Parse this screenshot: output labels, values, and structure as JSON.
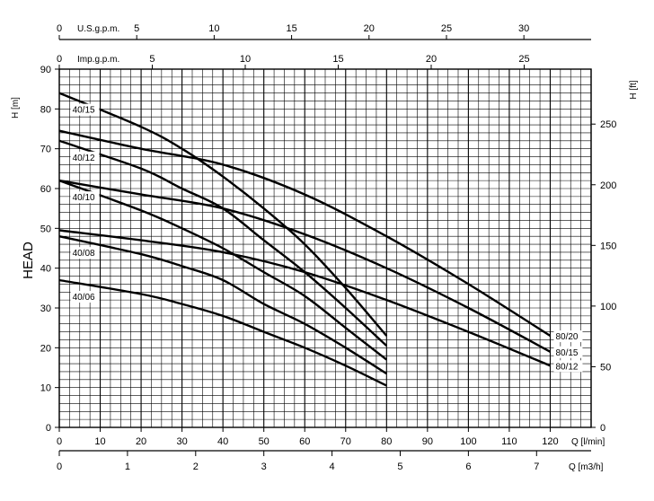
{
  "chart_data": {
    "type": "line",
    "ylabel": "HEAD",
    "left_axis": {
      "unit": "H [m]",
      "range": [
        0,
        90
      ],
      "ticks": [
        0,
        10,
        20,
        30,
        40,
        50,
        60,
        70,
        80,
        90
      ]
    },
    "right_axis": {
      "unit": "H [ft]",
      "range": [
        0,
        295.3
      ],
      "ticks": [
        0,
        50,
        100,
        150,
        200,
        250
      ]
    },
    "bottom_axis_lmin": {
      "unit": "Q [l/min]",
      "range": [
        0,
        130
      ],
      "ticks": [
        0,
        10,
        20,
        30,
        40,
        50,
        60,
        70,
        80,
        90,
        100,
        110,
        120
      ]
    },
    "bottom_axis_m3h": {
      "unit": "Q [m3/h]",
      "range": [
        0,
        7.8
      ],
      "ticks": [
        0,
        1,
        2,
        3,
        4,
        5,
        6,
        7
      ]
    },
    "top_axis_usgpm": {
      "unit": "U.S.g.p.m.",
      "range": [
        0,
        34.34
      ],
      "ticks": [
        0,
        5,
        10,
        15,
        20,
        25,
        30
      ]
    },
    "top_axis_impgpm": {
      "unit": "Imp.g.p.m.",
      "range": [
        0,
        28.6
      ],
      "ticks": [
        0,
        5,
        10,
        15,
        20,
        25
      ]
    },
    "grid": true,
    "series": [
      {
        "name": "40/15",
        "x": [
          0,
          20,
          30,
          40,
          50,
          60,
          70,
          80
        ],
        "y": [
          84,
          75.5,
          70,
          63,
          55,
          46,
          35,
          23
        ]
      },
      {
        "name": "40/12",
        "x": [
          0,
          20,
          30,
          40,
          50,
          60,
          70,
          80
        ],
        "y": [
          72,
          65,
          60,
          55,
          47,
          39,
          30,
          20.5
        ]
      },
      {
        "name": "40/10",
        "x": [
          0,
          20,
          30,
          40,
          50,
          60,
          70,
          80
        ],
        "y": [
          62,
          54.5,
          50,
          45,
          39,
          33,
          25,
          17
        ]
      },
      {
        "name": "40/08",
        "x": [
          0,
          20,
          30,
          40,
          50,
          60,
          70,
          80
        ],
        "y": [
          48,
          43.5,
          40.5,
          37,
          31,
          26,
          20,
          13.5
        ]
      },
      {
        "name": "40/06",
        "x": [
          0,
          20,
          30,
          40,
          50,
          60,
          70,
          80
        ],
        "y": [
          37,
          33.5,
          31,
          28,
          24,
          20,
          15.5,
          10.5
        ]
      },
      {
        "name": "80/20",
        "x": [
          0,
          20,
          40,
          60,
          80,
          100,
          120
        ],
        "y": [
          74.5,
          70,
          66,
          58.5,
          48,
          36,
          23
        ]
      },
      {
        "name": "80/15",
        "x": [
          0,
          20,
          40,
          60,
          80,
          100,
          120
        ],
        "y": [
          62,
          58.5,
          55,
          48.5,
          40,
          30,
          19
        ]
      },
      {
        "name": "80/12",
        "x": [
          0,
          20,
          40,
          60,
          80,
          100,
          120
        ],
        "y": [
          49.5,
          47,
          44,
          39,
          32,
          24,
          15.5
        ]
      }
    ]
  }
}
